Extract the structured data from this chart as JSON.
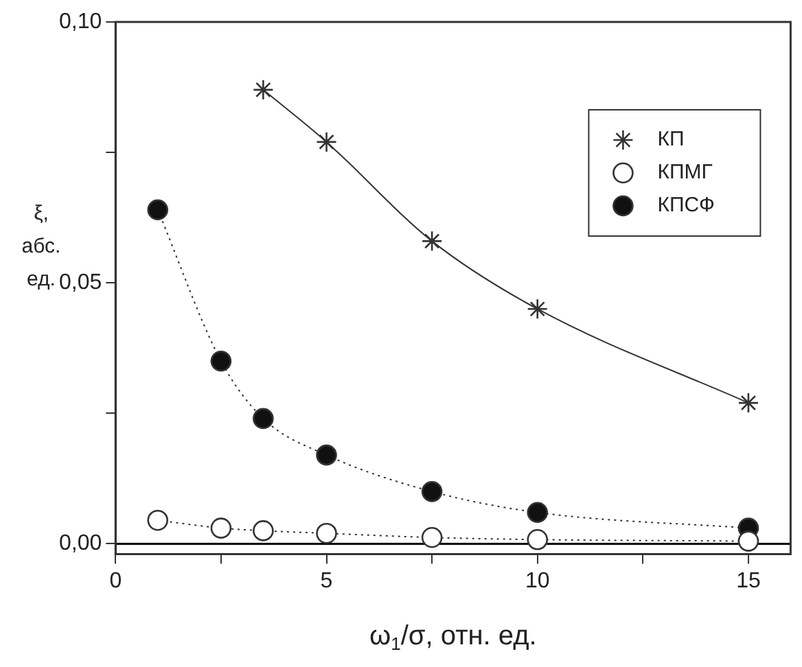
{
  "chart_data": {
    "type": "line",
    "xlabel": "ω$_{1}$/σ, отн. ед.",
    "ylabel": "ξ, абс. ед.",
    "xlim": [
      0,
      16
    ],
    "xticks": [
      0,
      {
        "value": 2.5,
        "label": null
      },
      5,
      {
        "value": 7.5,
        "label": null
      },
      10,
      {
        "value": 12.5,
        "label": null
      },
      15
    ],
    "ylim": [
      -0.002,
      0.1
    ],
    "yticks": [
      {
        "value": 0,
        "label": "0,00"
      },
      {
        "value": 0.025,
        "label": null
      },
      {
        "value": 0.05,
        "label": "0,05"
      },
      {
        "value": 0.075,
        "label": null
      },
      {
        "value": 0.1,
        "label": "0,10"
      }
    ],
    "legend": "top right",
    "grid": false,
    "ref_lines": [
      {
        "axis": "y",
        "value": 0,
        "color": "#000000",
        "line_style": "solid"
      }
    ],
    "series": [
      {
        "name": "КП",
        "color": "#333333",
        "marker": "cross",
        "line_style": "solid",
        "x": [
          3.5,
          5,
          7.5,
          10,
          15
        ],
        "values": [
          0.087,
          0.077,
          0.058,
          0.045,
          0.027
        ]
      },
      {
        "name": "КПМГ",
        "color": "#ffffff",
        "marker": "circle",
        "line_style": "dotted",
        "x": [
          1,
          2.5,
          3.5,
          5,
          7.5,
          10,
          15
        ],
        "values": [
          0.0045,
          0.003,
          0.0025,
          0.002,
          0.0012,
          0.0008,
          0.0005
        ]
      },
      {
        "name": "КПСФ",
        "color": "#111111",
        "marker": "circle",
        "line_style": "dotted",
        "x": [
          1,
          2.5,
          3.5,
          5,
          7.5,
          10,
          15
        ],
        "values": [
          0.064,
          0.035,
          0.024,
          0.017,
          0.01,
          0.006,
          0.003
        ]
      }
    ]
  }
}
